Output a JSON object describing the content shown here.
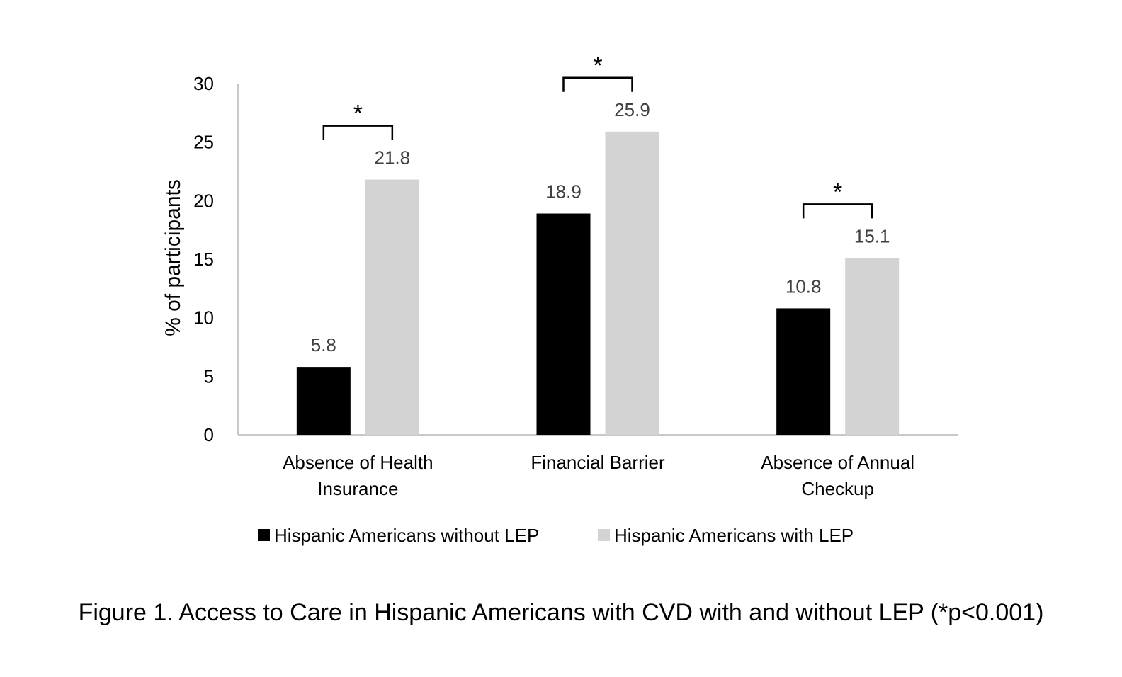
{
  "chart_data": {
    "type": "bar",
    "categories": [
      [
        "Absence of Health",
        "Insurance"
      ],
      [
        "Financial Barrier"
      ],
      [
        "Absence of Annual",
        "Checkup"
      ]
    ],
    "series": [
      {
        "name": "Hispanic Americans without LEP",
        "color": "#000000",
        "values": [
          5.8,
          18.9,
          10.8
        ]
      },
      {
        "name": "Hispanic Americans with LEP",
        "color": "#d3d3d3",
        "values": [
          21.8,
          25.9,
          15.1
        ]
      }
    ],
    "ylabel": "% of participants",
    "ylim": [
      0,
      30
    ],
    "yticks": [
      0,
      5,
      10,
      15,
      20,
      25,
      30
    ],
    "significance_marker": "*",
    "significant_categories": [
      0,
      1,
      2
    ],
    "legend_position": "bottom"
  },
  "caption": "Figure 1. Access to Care in Hispanic Americans with CVD with and without LEP (*p<0.001)"
}
